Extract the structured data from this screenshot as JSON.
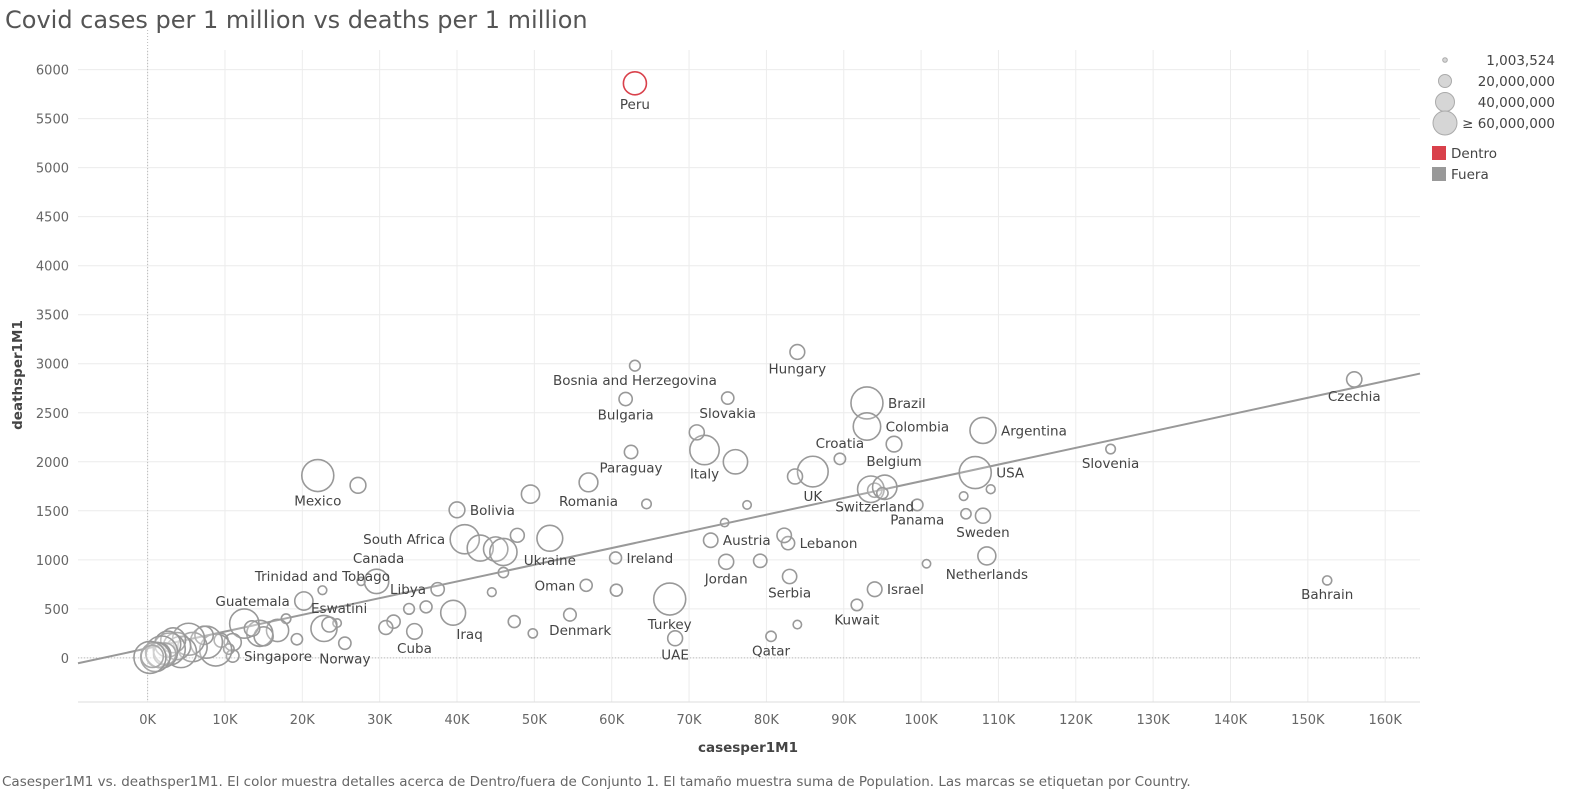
{
  "title": "Covid cases per 1 million vs deaths per 1 million",
  "caption": "Casesper1M1 vs. deathsper1M1. El color muestra detalles acerca de Dentro/fuera de Conjunto 1. El tamaño muestra suma de Population. Las marcas se etiquetan por Country.",
  "colors": {
    "dentro": "#d9414b",
    "fuera": "#999999",
    "trend": "#999999",
    "grid": "#ececec"
  },
  "legend": {
    "size_entries": [
      "1,003,524",
      "20,000,000",
      "40,000,000",
      "≥ 60,000,000"
    ],
    "color_entries": [
      {
        "label": "Dentro",
        "color": "#d9414b"
      },
      {
        "label": "Fuera",
        "color": "#999999"
      }
    ]
  },
  "chart_data": {
    "type": "scatter",
    "title": "Covid cases per 1 million vs deaths per 1 million",
    "xlabel": "casesper1M1",
    "ylabel": "deathsper1M1",
    "xlim": [
      -9000,
      164500
    ],
    "ylim": [
      -450,
      6200
    ],
    "x_ticks": [
      0,
      10000,
      20000,
      30000,
      40000,
      50000,
      60000,
      70000,
      80000,
      90000,
      100000,
      110000,
      120000,
      130000,
      140000,
      150000,
      160000
    ],
    "x_tick_labels": [
      "0K",
      "10K",
      "20K",
      "30K",
      "40K",
      "50K",
      "60K",
      "70K",
      "80K",
      "90K",
      "100K",
      "110K",
      "120K",
      "130K",
      "140K",
      "150K",
      "160K"
    ],
    "y_ticks": [
      0,
      500,
      1000,
      1500,
      2000,
      2500,
      3000,
      3500,
      4000,
      4500,
      5000,
      5500,
      6000
    ],
    "y_tick_labels": [
      "0",
      "500",
      "1000",
      "1500",
      "2000",
      "2500",
      "3000",
      "3500",
      "4000",
      "4500",
      "5000",
      "5500",
      "6000"
    ],
    "grid": true,
    "legend_position": "top-right",
    "trend_line": {
      "x": [
        -9000,
        164500
      ],
      "y": [
        -55,
        2900
      ]
    },
    "points": [
      {
        "label": "Peru",
        "x": 63000,
        "y": 5860,
        "pop": 33000000,
        "set": "Dentro",
        "anchor": "below"
      },
      {
        "label": "Czechia",
        "x": 156000,
        "y": 2840,
        "pop": 10700000,
        "set": "Fuera",
        "anchor": "below"
      },
      {
        "label": "Hungary",
        "x": 84000,
        "y": 3120,
        "pop": 9700000,
        "set": "Fuera",
        "anchor": "below"
      },
      {
        "label": "Bosnia and Herzegovina",
        "x": 63000,
        "y": 2980,
        "pop": 3300000,
        "set": "Fuera",
        "anchor": "below"
      },
      {
        "label": "Bulgaria",
        "x": 61800,
        "y": 2640,
        "pop": 6900000,
        "set": "Fuera",
        "anchor": "below"
      },
      {
        "label": "Slovakia",
        "x": 75000,
        "y": 2650,
        "pop": 5400000,
        "set": "Fuera",
        "anchor": "below"
      },
      {
        "label": "Brazil",
        "x": 93000,
        "y": 2600,
        "pop": 213000000,
        "set": "Fuera",
        "anchor": "right"
      },
      {
        "label": "Colombia",
        "x": 93000,
        "y": 2360,
        "pop": 51000000,
        "set": "Fuera",
        "anchor": "right"
      },
      {
        "label": "Argentina",
        "x": 108000,
        "y": 2320,
        "pop": 45000000,
        "set": "Fuera",
        "anchor": "right"
      },
      {
        "label": "Croatia",
        "x": 89500,
        "y": 2030,
        "pop": 4100000,
        "set": "Fuera",
        "anchor": "above"
      },
      {
        "label": "Paraguay",
        "x": 62500,
        "y": 2100,
        "pop": 7100000,
        "set": "Fuera",
        "anchor": "below"
      },
      {
        "label": "Italy",
        "x": 72000,
        "y": 2120,
        "pop": 60400000,
        "set": "Fuera",
        "anchor": "below"
      },
      {
        "label": "",
        "x": 71000,
        "y": 2300,
        "pop": 10200000,
        "set": "Fuera"
      },
      {
        "label": "",
        "x": 76000,
        "y": 2000,
        "pop": 38000000,
        "set": "Fuera"
      },
      {
        "label": "Belgium",
        "x": 96500,
        "y": 2180,
        "pop": 11500000,
        "set": "Fuera",
        "anchor": "below"
      },
      {
        "label": "Slovenia",
        "x": 124500,
        "y": 2130,
        "pop": 2100000,
        "set": "Fuera",
        "anchor": "below"
      },
      {
        "label": "UK",
        "x": 86000,
        "y": 1900,
        "pop": 67000000,
        "set": "Fuera",
        "anchor": "below"
      },
      {
        "label": "",
        "x": 83700,
        "y": 1850,
        "pop": 10100000,
        "set": "Fuera"
      },
      {
        "label": "USA",
        "x": 107000,
        "y": 1890,
        "pop": 331000000,
        "set": "Fuera",
        "anchor": "right"
      },
      {
        "label": "Mexico",
        "x": 22000,
        "y": 1860,
        "pop": 129000000,
        "set": "Fuera",
        "anchor": "below"
      },
      {
        "label": "",
        "x": 27200,
        "y": 1760,
        "pop": 11800000,
        "set": "Fuera"
      },
      {
        "label": "Romania",
        "x": 57000,
        "y": 1790,
        "pop": 19200000,
        "set": "Fuera",
        "anchor": "below"
      },
      {
        "label": "",
        "x": 49500,
        "y": 1670,
        "pop": 17700000,
        "set": "Fuera"
      },
      {
        "label": "",
        "x": 64500,
        "y": 1570,
        "pop": 2000000,
        "set": "Fuera"
      },
      {
        "label": "",
        "x": 77500,
        "y": 1560,
        "pop": 1200000,
        "set": "Fuera"
      },
      {
        "label": "Bolivia",
        "x": 40000,
        "y": 1510,
        "pop": 11700000,
        "set": "Fuera",
        "anchor": "right"
      },
      {
        "label": "Switzerland",
        "x": 94000,
        "y": 1710,
        "pop": 8600000,
        "set": "Fuera",
        "anchor": "below"
      },
      {
        "label": "",
        "x": 93500,
        "y": 1720,
        "pop": 47000000,
        "set": "Fuera"
      },
      {
        "label": "",
        "x": 95300,
        "y": 1740,
        "pop": 38000000,
        "set": "Fuera"
      },
      {
        "label": "",
        "x": 95000,
        "y": 1680,
        "pop": 4000000,
        "set": "Fuera"
      },
      {
        "label": "Panama",
        "x": 99500,
        "y": 1560,
        "pop": 4300000,
        "set": "Fuera",
        "anchor": "below"
      },
      {
        "label": "",
        "x": 105500,
        "y": 1650,
        "pop": 1300000,
        "set": "Fuera"
      },
      {
        "label": "",
        "x": 109000,
        "y": 1720,
        "pop": 1500000,
        "set": "Fuera"
      },
      {
        "label": "Sweden",
        "x": 108000,
        "y": 1450,
        "pop": 10300000,
        "set": "Fuera",
        "anchor": "below"
      },
      {
        "label": "",
        "x": 105800,
        "y": 1470,
        "pop": 2800000,
        "set": "Fuera"
      },
      {
        "label": "Netherlands",
        "x": 108500,
        "y": 1040,
        "pop": 17100000,
        "set": "Fuera",
        "anchor": "below"
      },
      {
        "label": "South Africa",
        "x": 41000,
        "y": 1210,
        "pop": 59300000,
        "set": "Fuera",
        "anchor": "left"
      },
      {
        "label": "",
        "x": 43000,
        "y": 1120,
        "pop": 45000000,
        "set": "Fuera"
      },
      {
        "label": "",
        "x": 45000,
        "y": 1110,
        "pop": 38000000,
        "set": "Fuera"
      },
      {
        "label": "",
        "x": 46000,
        "y": 1080,
        "pop": 50000000,
        "set": "Fuera"
      },
      {
        "label": "",
        "x": 47800,
        "y": 1250,
        "pop": 8000000,
        "set": "Fuera"
      },
      {
        "label": "Ukraine",
        "x": 52000,
        "y": 1220,
        "pop": 44000000,
        "set": "Fuera",
        "anchor": "below"
      },
      {
        "label": "Ireland",
        "x": 60500,
        "y": 1020,
        "pop": 4900000,
        "set": "Fuera",
        "anchor": "right"
      },
      {
        "label": "Austria",
        "x": 72800,
        "y": 1200,
        "pop": 9000000,
        "set": "Fuera",
        "anchor": "right"
      },
      {
        "label": "",
        "x": 74600,
        "y": 1380,
        "pop": 1100000,
        "set": "Fuera"
      },
      {
        "label": "Lebanon",
        "x": 82800,
        "y": 1170,
        "pop": 6800000,
        "set": "Fuera",
        "anchor": "right"
      },
      {
        "label": "",
        "x": 82300,
        "y": 1250,
        "pop": 9000000,
        "set": "Fuera"
      },
      {
        "label": "Jordan",
        "x": 74800,
        "y": 980,
        "pop": 10200000,
        "set": "Fuera",
        "anchor": "below"
      },
      {
        "label": "",
        "x": 79200,
        "y": 990,
        "pop": 7000000,
        "set": "Fuera"
      },
      {
        "label": "Serbia",
        "x": 83000,
        "y": 830,
        "pop": 8700000,
        "set": "Fuera",
        "anchor": "below"
      },
      {
        "label": "",
        "x": 100700,
        "y": 960,
        "pop": 1100000,
        "set": "Fuera"
      },
      {
        "label": "Israel",
        "x": 94000,
        "y": 700,
        "pop": 9300000,
        "set": "Fuera",
        "anchor": "right"
      },
      {
        "label": "Kuwait",
        "x": 91700,
        "y": 540,
        "pop": 4300000,
        "set": "Fuera",
        "anchor": "below"
      },
      {
        "label": "Bahrain",
        "x": 152500,
        "y": 790,
        "pop": 1700000,
        "set": "Fuera",
        "anchor": "below"
      },
      {
        "label": "Trinidad and Tobago",
        "x": 22600,
        "y": 690,
        "pop": 1400000,
        "set": "Fuera",
        "anchor": "above"
      },
      {
        "label": "",
        "x": 27600,
        "y": 780,
        "pop": 1000000,
        "set": "Fuera"
      },
      {
        "label": "Canada",
        "x": 29600,
        "y": 780,
        "pop": 38000000,
        "set": "Fuera",
        "anchor": "aboveright"
      },
      {
        "label": "Oman",
        "x": 56700,
        "y": 740,
        "pop": 5100000,
        "set": "Fuera",
        "anchor": "left"
      },
      {
        "label": "",
        "x": 60600,
        "y": 690,
        "pop": 5000000,
        "set": "Fuera"
      },
      {
        "label": "",
        "x": 46000,
        "y": 870,
        "pop": 2800000,
        "set": "Fuera"
      },
      {
        "label": "",
        "x": 44500,
        "y": 670,
        "pop": 1400000,
        "set": "Fuera"
      },
      {
        "label": "Libya",
        "x": 37500,
        "y": 700,
        "pop": 6900000,
        "set": "Fuera",
        "anchor": "left"
      },
      {
        "label": "",
        "x": 36000,
        "y": 520,
        "pop": 4900000,
        "set": "Fuera"
      },
      {
        "label": "",
        "x": 33800,
        "y": 500,
        "pop": 3300000,
        "set": "Fuera"
      },
      {
        "label": "Guatemala",
        "x": 20200,
        "y": 580,
        "pop": 17900000,
        "set": "Fuera",
        "anchor": "left"
      },
      {
        "label": "Eswatini",
        "x": 24500,
        "y": 355,
        "pop": 1200000,
        "set": "Fuera",
        "anchor": "aboveright"
      },
      {
        "label": "",
        "x": 17900,
        "y": 400,
        "pop": 2100000,
        "set": "Fuera"
      },
      {
        "label": "Iraq",
        "x": 39500,
        "y": 460,
        "pop": 40200000,
        "set": "Fuera",
        "anchor": "belowright"
      },
      {
        "label": "Cuba",
        "x": 34500,
        "y": 270,
        "pop": 11300000,
        "set": "Fuera",
        "anchor": "below"
      },
      {
        "label": "",
        "x": 31800,
        "y": 370,
        "pop": 6800000,
        "set": "Fuera"
      },
      {
        "label": "",
        "x": 30800,
        "y": 310,
        "pop": 8000000,
        "set": "Fuera"
      },
      {
        "label": "Denmark",
        "x": 54600,
        "y": 440,
        "pop": 5800000,
        "set": "Fuera",
        "anchor": "belowright"
      },
      {
        "label": "",
        "x": 47400,
        "y": 370,
        "pop": 5000000,
        "set": "Fuera"
      },
      {
        "label": "",
        "x": 49800,
        "y": 250,
        "pop": 1800000,
        "set": "Fuera"
      },
      {
        "label": "Turkey",
        "x": 67500,
        "y": 600,
        "pop": 84000000,
        "set": "Fuera",
        "anchor": "below"
      },
      {
        "label": "UAE",
        "x": 68200,
        "y": 200,
        "pop": 9900000,
        "set": "Fuera",
        "anchor": "below"
      },
      {
        "label": "Qatar",
        "x": 80600,
        "y": 220,
        "pop": 2900000,
        "set": "Fuera",
        "anchor": "below"
      },
      {
        "label": "",
        "x": 84000,
        "y": 340,
        "pop": 1200000,
        "set": "Fuera"
      },
      {
        "label": "Singapore",
        "x": 11000,
        "y": 20,
        "pop": 5800000,
        "set": "Fuera",
        "anchor": "right"
      },
      {
        "label": "Norway",
        "x": 25500,
        "y": 150,
        "pop": 5400000,
        "set": "Fuera",
        "anchor": "below"
      },
      {
        "label": "",
        "x": 22800,
        "y": 300,
        "pop": 45000000,
        "set": "Fuera"
      },
      {
        "label": "",
        "x": 23500,
        "y": 340,
        "pop": 10000000,
        "set": "Fuera"
      },
      {
        "label": "",
        "x": 19300,
        "y": 190,
        "pop": 4000000,
        "set": "Fuera"
      },
      {
        "label": "",
        "x": 16800,
        "y": 280,
        "pop": 30000000,
        "set": "Fuera"
      },
      {
        "label": "",
        "x": 14500,
        "y": 250,
        "pop": 45000000,
        "set": "Fuera"
      },
      {
        "label": "",
        "x": 15000,
        "y": 220,
        "pop": 20000000,
        "set": "Fuera"
      },
      {
        "label": "",
        "x": 12500,
        "y": 350,
        "pop": 60000000,
        "set": "Fuera"
      },
      {
        "label": "",
        "x": 13500,
        "y": 300,
        "pop": 11000000,
        "set": "Fuera"
      },
      {
        "label": "",
        "x": 11000,
        "y": 160,
        "pop": 15000000,
        "set": "Fuera"
      },
      {
        "label": "",
        "x": 10500,
        "y": 90,
        "pop": 3000000,
        "set": "Fuera"
      },
      {
        "label": "",
        "x": 9500,
        "y": 180,
        "pop": 8000000,
        "set": "Fuera"
      },
      {
        "label": "",
        "x": 8800,
        "y": 80,
        "pop": 110000000,
        "set": "Fuera"
      },
      {
        "label": "",
        "x": 7600,
        "y": 160,
        "pop": 100000000,
        "set": "Fuera"
      },
      {
        "label": "",
        "x": 7300,
        "y": 230,
        "pop": 18000000,
        "set": "Fuera"
      },
      {
        "label": "",
        "x": 5800,
        "y": 110,
        "pop": 60000000,
        "set": "Fuera"
      },
      {
        "label": "",
        "x": 5300,
        "y": 190,
        "pop": 90000000,
        "set": "Fuera"
      },
      {
        "label": "",
        "x": 4300,
        "y": 60,
        "pop": 70000000,
        "set": "Fuera"
      },
      {
        "label": "",
        "x": 3800,
        "y": 120,
        "pop": 50000000,
        "set": "Fuera"
      },
      {
        "label": "",
        "x": 3300,
        "y": 180,
        "pop": 40000000,
        "set": "Fuera"
      },
      {
        "label": "",
        "x": 2800,
        "y": 90,
        "pop": 100000000,
        "set": "Fuera"
      },
      {
        "label": "",
        "x": 2600,
        "y": 140,
        "pop": 45000000,
        "set": "Fuera"
      },
      {
        "label": "",
        "x": 2200,
        "y": 40,
        "pop": 30000000,
        "set": "Fuera"
      },
      {
        "label": "",
        "x": 1800,
        "y": 60,
        "pop": 80000000,
        "set": "Fuera"
      },
      {
        "label": "",
        "x": 1400,
        "y": 30,
        "pop": 40000000,
        "set": "Fuera"
      },
      {
        "label": "",
        "x": 1000,
        "y": 10,
        "pop": 60000000,
        "set": "Fuera"
      },
      {
        "label": "",
        "x": 600,
        "y": 15,
        "pop": 30000000,
        "set": "Fuera"
      },
      {
        "label": "",
        "x": 300,
        "y": 5,
        "pop": 90000000,
        "set": "Fuera"
      }
    ]
  }
}
